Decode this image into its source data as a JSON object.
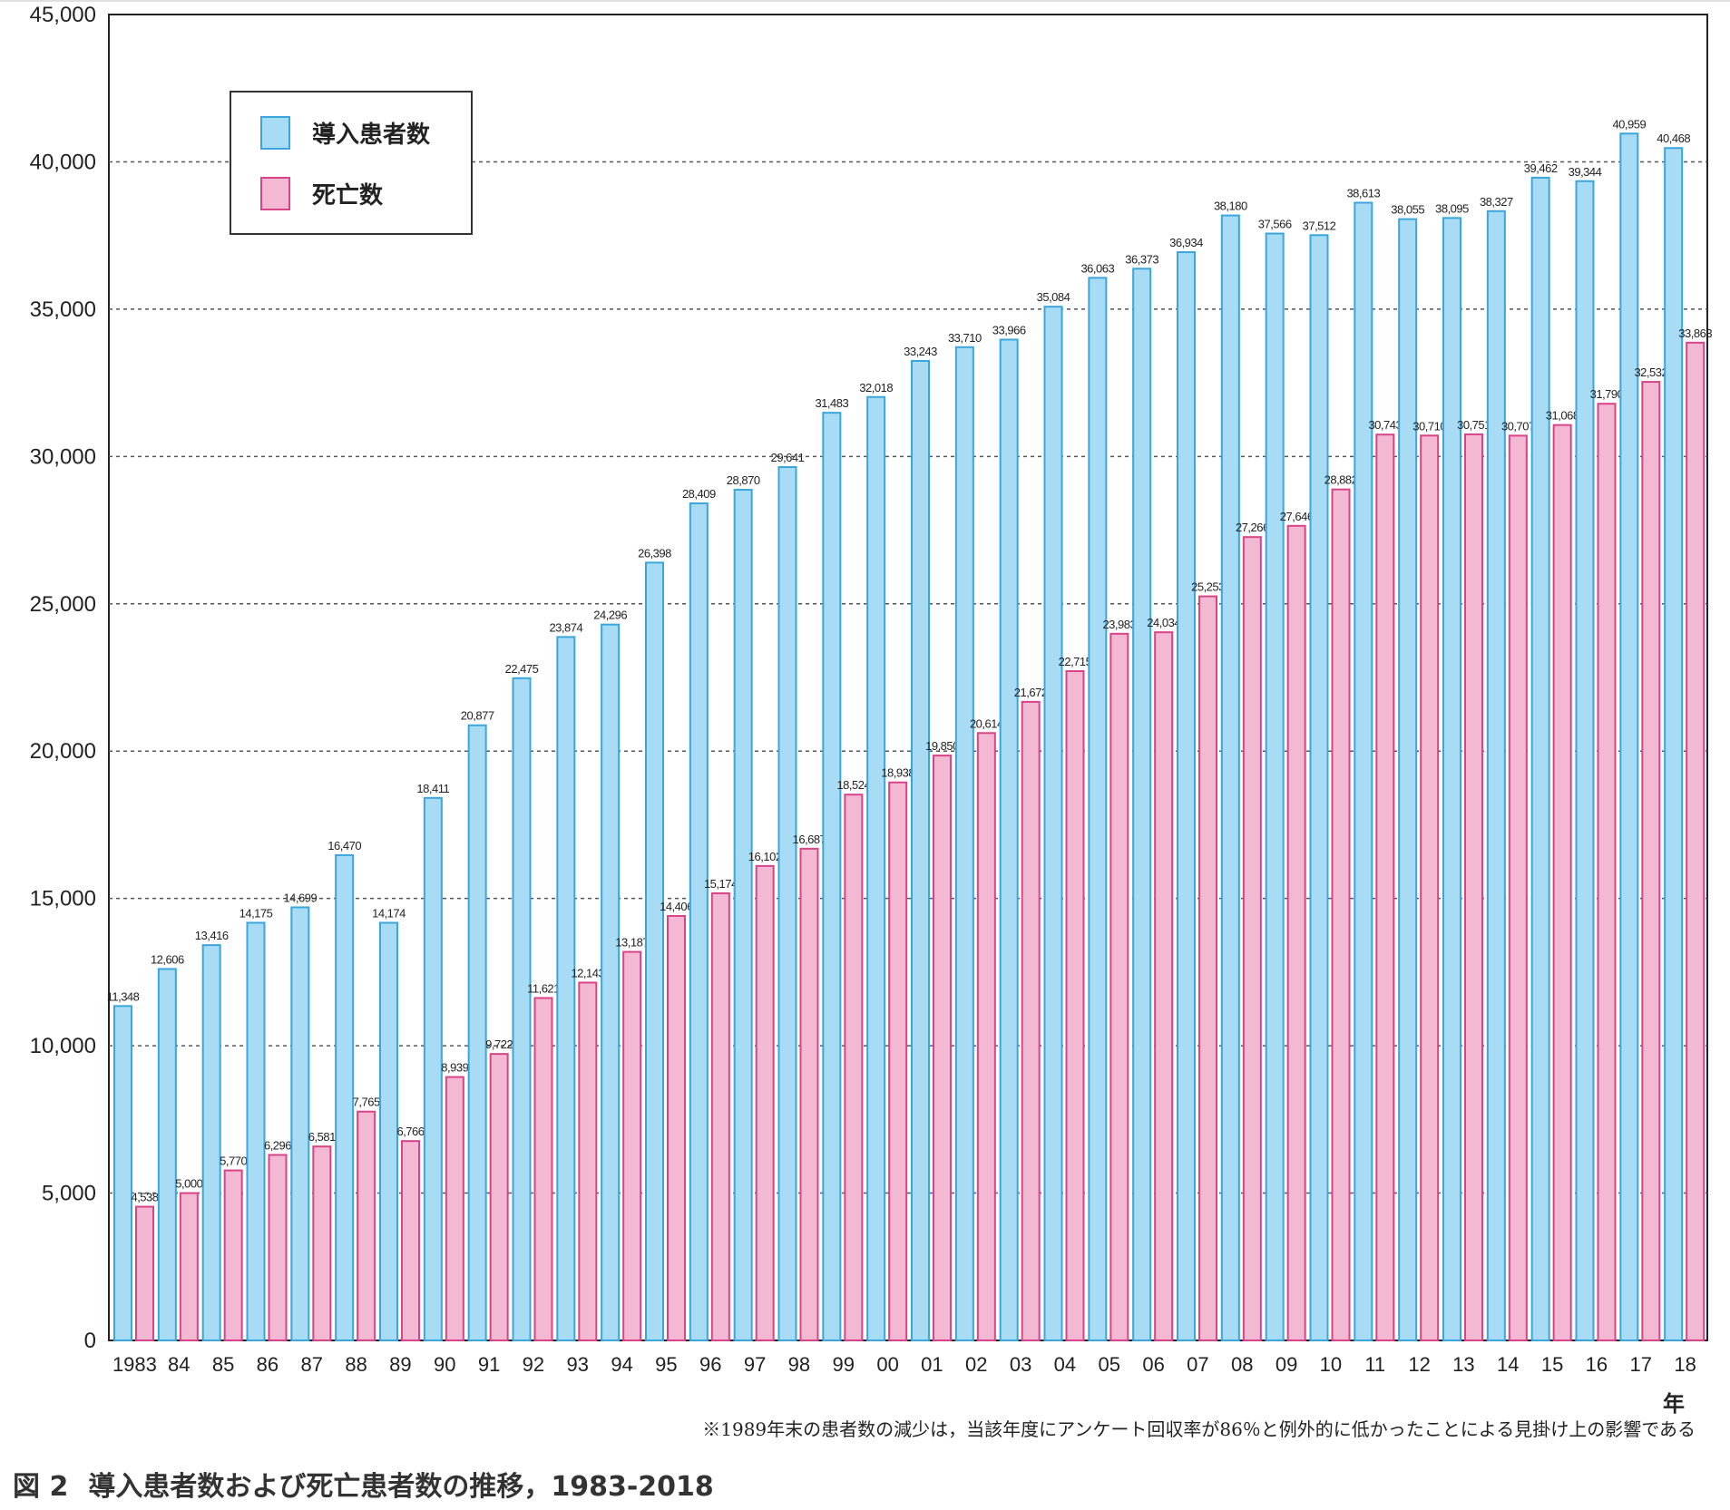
{
  "chart_data": {
    "type": "bar",
    "categories": [
      "1983",
      "84",
      "85",
      "86",
      "87",
      "88",
      "89",
      "90",
      "91",
      "92",
      "93",
      "94",
      "95",
      "96",
      "97",
      "98",
      "99",
      "00",
      "01",
      "02",
      "03",
      "04",
      "05",
      "06",
      "07",
      "08",
      "09",
      "10",
      "11",
      "12",
      "13",
      "14",
      "15",
      "16",
      "17",
      "18"
    ],
    "series": [
      {
        "name": "導入患者数",
        "color": "#a8dcf5",
        "stroke": "#3aa6dd",
        "values": [
          11348,
          12606,
          13416,
          14175,
          14699,
          16470,
          14174,
          18411,
          20877,
          22475,
          23874,
          24296,
          26398,
          28409,
          28870,
          29641,
          31483,
          32018,
          33243,
          33710,
          33966,
          35084,
          36063,
          36373,
          36934,
          38180,
          37566,
          37512,
          38613,
          38055,
          38095,
          38327,
          39462,
          39344,
          40959,
          40468
        ],
        "labels": [
          "11,348",
          "12,606",
          "13,416",
          "14,175",
          "14,699",
          "16,470",
          "14,174",
          "18,411",
          "20,877",
          "22,475",
          "23,874",
          "24,296",
          "26,398",
          "28,409",
          "28,870",
          "29,641",
          "31,483",
          "32,018",
          "33,243",
          "33,710",
          "33,966",
          "35,084",
          "36,063",
          "36,373",
          "36,934",
          "38,180",
          "37,566",
          "37,512",
          "38,613",
          "38,055",
          "38,095",
          "38,327",
          "39,462",
          "39,344",
          "40,959",
          "40,468"
        ]
      },
      {
        "name": "死亡数",
        "color": "#f3b8d2",
        "stroke": "#d9438a",
        "values": [
          4538,
          5000,
          5770,
          6296,
          6581,
          7765,
          6766,
          8939,
          9722,
          11621,
          12143,
          13187,
          14406,
          15174,
          16102,
          16687,
          18524,
          18938,
          19850,
          20614,
          21672,
          22715,
          23983,
          24034,
          25253,
          27266,
          27646,
          28882,
          30743,
          30710,
          30751,
          30707,
          31068,
          31790,
          32532,
          33863
        ],
        "labels": [
          "4,538",
          "5,000",
          "5,770",
          "6,296",
          "6,581",
          "7,765",
          "6,766",
          "8,939",
          "9,722",
          "11,621",
          "12,143",
          "13,187",
          "14,406",
          "15,174",
          "16,102",
          "16,687",
          "18,524",
          "18,938",
          "19,850",
          "20,614",
          "21,672",
          "22,715",
          "23,983",
          "24,034",
          "25,253",
          "27,266",
          "27,646",
          "28,882",
          "30,743",
          "30,710",
          "30,751",
          "30,707",
          "31,068",
          "31,790",
          "32,532",
          "33,863"
        ]
      }
    ],
    "yticks": [
      "0",
      "5,000",
      "10,000",
      "15,000",
      "20,000",
      "25,000",
      "30,000",
      "35,000",
      "40,000",
      "45,000"
    ],
    "ylim": [
      0,
      45000
    ],
    "xunit": "年",
    "grid": "dashed horizontal",
    "legend_position": "top-left"
  },
  "annotations": {
    "footnote": "※1989年末の患者数の減少は，当該年度にアンケート回収率が86％と例外的に低かったことによる見掛け上の影響である"
  },
  "caption": {
    "figure_no": "図 2",
    "title": "導入患者数および死亡患者数の推移，1983-2018"
  }
}
